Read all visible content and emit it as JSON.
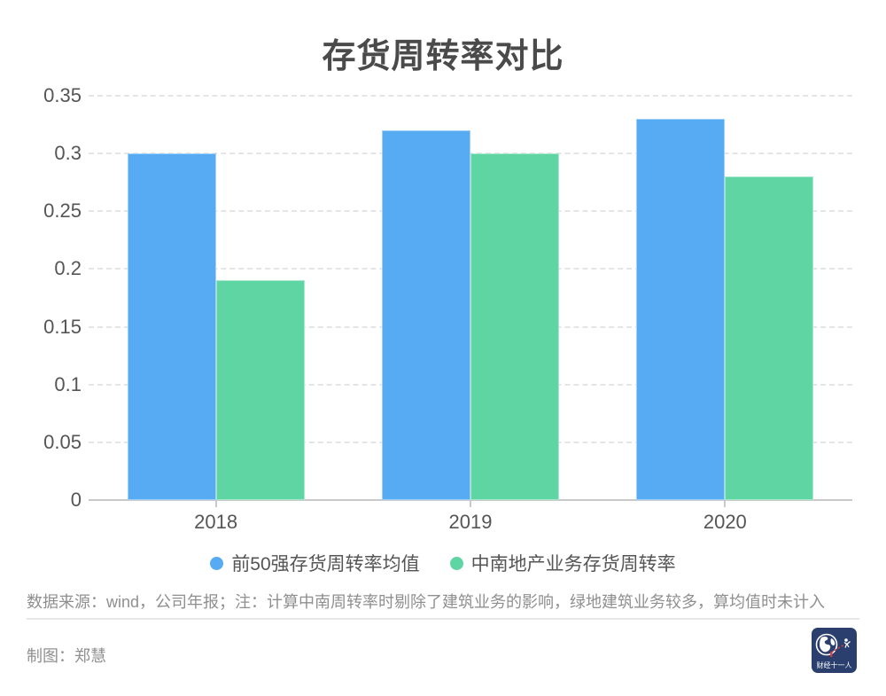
{
  "title": "存货周转率对比",
  "chart_data": {
    "type": "bar",
    "title": "存货周转率对比",
    "categories": [
      "2018",
      "2019",
      "2020"
    ],
    "series": [
      {
        "name": "前50强存货周转率均值",
        "color": "#57ABF2",
        "values": [
          0.3,
          0.32,
          0.33
        ]
      },
      {
        "name": "中南地产业务存货周转率",
        "color": "#5FD5A4",
        "values": [
          0.19,
          0.3,
          0.28
        ]
      }
    ],
    "xlabel": "",
    "ylabel": "",
    "ylim": [
      0,
      0.35
    ],
    "ytick_step": 0.05,
    "ytick_labels": [
      "0",
      "0.05",
      "0.1",
      "0.15",
      "0.2",
      "0.25",
      "0.3",
      "0.35"
    ],
    "grid": "horizontal-dashed",
    "legend_position": "bottom"
  },
  "footer": {
    "note": "数据来源：wind，公司年报；注：计算中南周转率时剔除了建筑业务的影响，绿地建筑业务较多，算均值时未计入",
    "credit": "制图：郑慧",
    "logo_text": "财经十一人"
  },
  "colors": {
    "series1": "#57ABF2",
    "series2": "#5FD5A4",
    "title_text": "#4a4a4a",
    "axis_text": "#555555",
    "muted_text": "#8f8f8f",
    "gridline": "#e5e5e5",
    "logo_bg": "#2a3f6d",
    "logo_accent": "#d8393c"
  }
}
